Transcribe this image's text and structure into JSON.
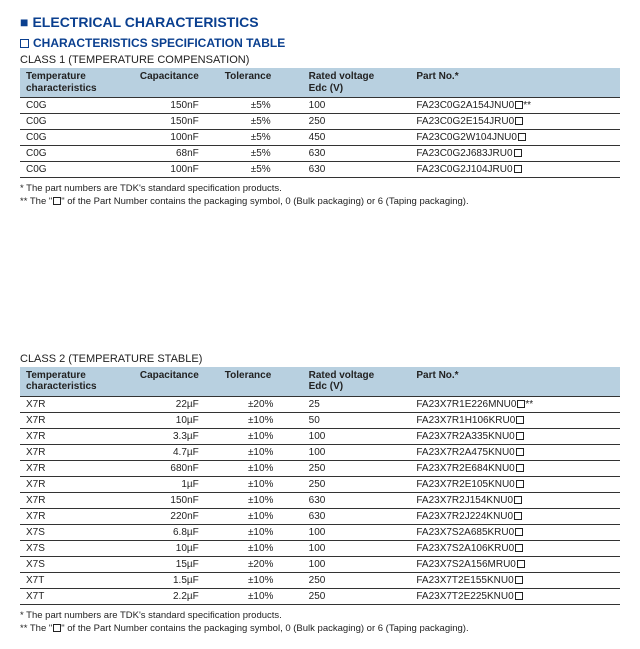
{
  "header": {
    "main_title": "ELECTRICAL CHARACTERISTICS",
    "sub_title": "CHARACTERISTICS SPECIFICATION TABLE"
  },
  "columns": {
    "temp": {
      "line1": "Temperature",
      "line2": "characteristics"
    },
    "cap": "Capacitance",
    "tol": "Tolerance",
    "volt": {
      "line1": "Rated voltage",
      "line2": "Edc (V)"
    },
    "part": "Part No.*"
  },
  "class1": {
    "label": "CLASS 1 (TEMPERATURE COMPENSATION)",
    "rows": [
      {
        "temp": "C0G",
        "cap": "150nF",
        "tol": "±5%",
        "volt": "100",
        "part": "FA23C0G2A154JNU0",
        "dblstar": true
      },
      {
        "temp": "C0G",
        "cap": "150nF",
        "tol": "±5%",
        "volt": "250",
        "part": "FA23C0G2E154JRU0",
        "dblstar": false
      },
      {
        "temp": "C0G",
        "cap": "100nF",
        "tol": "±5%",
        "volt": "450",
        "part": "FA23C0G2W104JNU0",
        "dblstar": false
      },
      {
        "temp": "C0G",
        "cap": "68nF",
        "tol": "±5%",
        "volt": "630",
        "part": "FA23C0G2J683JRU0",
        "dblstar": false
      },
      {
        "temp": "C0G",
        "cap": "100nF",
        "tol": "±5%",
        "volt": "630",
        "part": "FA23C0G2J104JRU0",
        "dblstar": false
      }
    ]
  },
  "class2": {
    "label": "CLASS 2 (TEMPERATURE STABLE)",
    "rows": [
      {
        "temp": "X7R",
        "cap": "22µF",
        "tol": "±20%",
        "volt": "25",
        "part": "FA23X7R1E226MNU0",
        "dblstar": true
      },
      {
        "temp": "X7R",
        "cap": "10µF",
        "tol": "±10%",
        "volt": "50",
        "part": "FA23X7R1H106KRU0",
        "dblstar": false
      },
      {
        "temp": "X7R",
        "cap": "3.3µF",
        "tol": "±10%",
        "volt": "100",
        "part": "FA23X7R2A335KNU0",
        "dblstar": false
      },
      {
        "temp": "X7R",
        "cap": "4.7µF",
        "tol": "±10%",
        "volt": "100",
        "part": "FA23X7R2A475KNU0",
        "dblstar": false
      },
      {
        "temp": "X7R",
        "cap": "680nF",
        "tol": "±10%",
        "volt": "250",
        "part": "FA23X7R2E684KNU0",
        "dblstar": false
      },
      {
        "temp": "X7R",
        "cap": "1µF",
        "tol": "±10%",
        "volt": "250",
        "part": "FA23X7R2E105KNU0",
        "dblstar": false
      },
      {
        "temp": "X7R",
        "cap": "150nF",
        "tol": "±10%",
        "volt": "630",
        "part": "FA23X7R2J154KNU0",
        "dblstar": false
      },
      {
        "temp": "X7R",
        "cap": "220nF",
        "tol": "±10%",
        "volt": "630",
        "part": "FA23X7R2J224KNU0",
        "dblstar": false
      },
      {
        "temp": "X7S",
        "cap": "6.8µF",
        "tol": "±10%",
        "volt": "100",
        "part": "FA23X7S2A685KRU0",
        "dblstar": false
      },
      {
        "temp": "X7S",
        "cap": "10µF",
        "tol": "±10%",
        "volt": "100",
        "part": "FA23X7S2A106KRU0",
        "dblstar": false
      },
      {
        "temp": "X7S",
        "cap": "15µF",
        "tol": "±20%",
        "volt": "100",
        "part": "FA23X7S2A156MRU0",
        "dblstar": false
      },
      {
        "temp": "X7T",
        "cap": "1.5µF",
        "tol": "±10%",
        "volt": "250",
        "part": "FA23X7T2E155KNU0",
        "dblstar": false
      },
      {
        "temp": "X7T",
        "cap": "2.2µF",
        "tol": "±10%",
        "volt": "250",
        "part": "FA23X7T2E225KNU0",
        "dblstar": false
      }
    ]
  },
  "footnotes": {
    "f1": "* The part numbers are TDK's standard specification products.",
    "f2_pre": "** The \"",
    "f2_post": "\" of the Part Number contains the packaging symbol, 0 (Bulk packaging) or 6 (Taping packaging)."
  }
}
